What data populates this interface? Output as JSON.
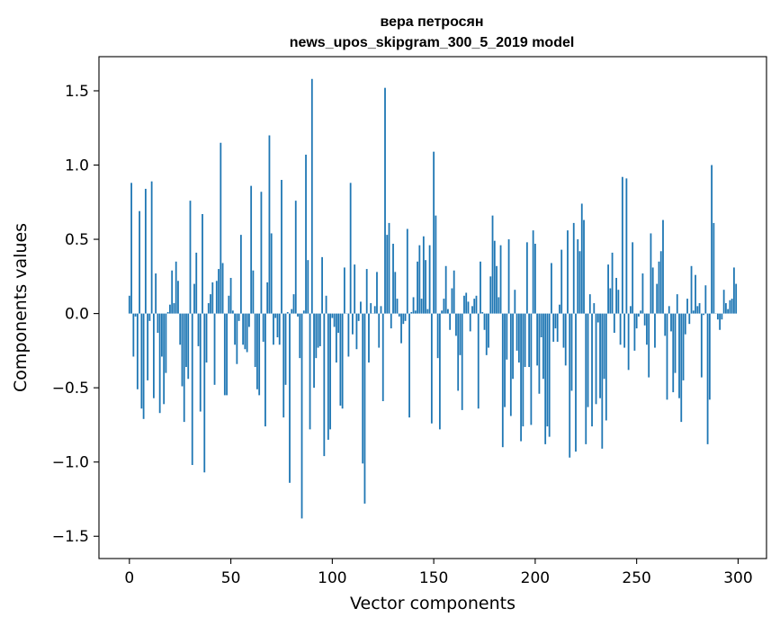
{
  "chart_data": {
    "type": "bar",
    "title_line1": "вера петросян",
    "title_line2": "news_upos_skipgram_300_5_2019 model",
    "xlabel": "Vector components",
    "ylabel": "Components values",
    "xlim": [
      -15,
      314
    ],
    "ylim": [
      -1.65,
      1.73
    ],
    "xticks": [
      0,
      50,
      100,
      150,
      200,
      250,
      300
    ],
    "xtick_labels": [
      "0",
      "50",
      "100",
      "150",
      "200",
      "250",
      "300"
    ],
    "yticks": [
      -1.5,
      -1.0,
      -0.5,
      0.0,
      0.5,
      1.0,
      1.5
    ],
    "ytick_labels": [
      "−1.5",
      "−1.0",
      "−0.5",
      "0.0",
      "0.5",
      "1.0",
      "1.5"
    ],
    "bar_color": "#1f77b4",
    "values": [
      0.12,
      0.88,
      -0.29,
      -0.02,
      -0.51,
      0.69,
      -0.64,
      -0.71,
      0.84,
      -0.45,
      -0.05,
      0.89,
      -0.57,
      0.27,
      -0.13,
      -0.67,
      -0.29,
      -0.61,
      -0.4,
      0.01,
      0.06,
      0.29,
      0.07,
      0.35,
      0.22,
      -0.21,
      -0.49,
      -0.73,
      -0.36,
      -0.44,
      0.76,
      -1.02,
      0.2,
      0.41,
      -0.22,
      -0.66,
      0.67,
      -1.07,
      -0.33,
      0.07,
      0.13,
      0.21,
      -0.48,
      0.22,
      0.3,
      1.15,
      0.34,
      -0.55,
      -0.55,
      0.12,
      0.24,
      0.02,
      -0.21,
      -0.34,
      -0.05,
      0.53,
      -0.21,
      -0.24,
      -0.26,
      -0.09,
      0.86,
      0.29,
      -0.36,
      -0.51,
      -0.55,
      0.82,
      -0.19,
      -0.76,
      0.21,
      1.2,
      0.54,
      -0.21,
      -0.03,
      -0.16,
      -0.21,
      0.9,
      -0.7,
      -0.48,
      0.01,
      -1.14,
      0.03,
      0.13,
      0.76,
      -0.02,
      -0.3,
      -1.38,
      0.02,
      1.07,
      0.36,
      -0.78,
      1.58,
      -0.5,
      -0.3,
      -0.23,
      -0.22,
      0.38,
      -0.96,
      0.12,
      -0.85,
      -0.78,
      -0.03,
      -0.09,
      -0.33,
      -0.13,
      -0.62,
      -0.64,
      0.31,
      0.0,
      -0.29,
      0.88,
      -0.14,
      0.33,
      -0.24,
      -0.05,
      0.08,
      -1.01,
      -1.28,
      0.3,
      -0.33,
      0.07,
      0.0,
      0.05,
      0.28,
      -0.23,
      0.05,
      -0.59,
      1.52,
      0.53,
      0.61,
      -0.1,
      0.47,
      0.28,
      0.1,
      -0.02,
      -0.2,
      -0.07,
      -0.05,
      0.57,
      -0.7,
      0.01,
      0.11,
      0.02,
      0.35,
      0.46,
      0.1,
      0.52,
      0.36,
      0.03,
      0.46,
      -0.74,
      1.09,
      0.66,
      -0.3,
      -0.78,
      0.02,
      0.1,
      0.32,
      0.03,
      -0.11,
      0.17,
      0.29,
      -0.15,
      -0.52,
      -0.28,
      -0.65,
      0.12,
      0.14,
      0.08,
      -0.12,
      0.05,
      0.1,
      0.12,
      -0.64,
      0.35,
      0.01,
      -0.11,
      -0.28,
      -0.23,
      0.25,
      0.66,
      0.49,
      0.32,
      0.11,
      0.46,
      -0.9,
      -0.63,
      -0.31,
      0.5,
      -0.69,
      -0.44,
      0.16,
      -0.25,
      -0.33,
      -0.86,
      -0.76,
      -0.36,
      0.48,
      -0.36,
      -0.75,
      0.56,
      0.47,
      -0.35,
      -0.54,
      -0.16,
      -0.44,
      -0.88,
      -0.76,
      -0.83,
      0.34,
      -0.19,
      -0.1,
      -0.19,
      0.06,
      0.43,
      -0.23,
      -0.35,
      0.56,
      -0.97,
      -0.52,
      0.61,
      -0.93,
      0.5,
      0.42,
      0.74,
      0.63,
      -0.88,
      -0.63,
      0.13,
      -0.76,
      0.07,
      -0.61,
      -0.06,
      -0.57,
      -0.91,
      -0.44,
      -0.72,
      0.33,
      0.17,
      0.41,
      -0.13,
      0.24,
      0.16,
      -0.21,
      0.92,
      -0.23,
      0.91,
      -0.38,
      0.05,
      0.48,
      -0.25,
      -0.1,
      -0.02,
      0.02,
      0.27,
      -0.08,
      -0.21,
      -0.43,
      0.54,
      0.31,
      -0.23,
      0.2,
      0.35,
      0.42,
      0.63,
      -0.15,
      -0.58,
      0.05,
      -0.12,
      -0.53,
      -0.4,
      0.13,
      -0.57,
      -0.73,
      -0.45,
      -0.14,
      0.1,
      -0.07,
      0.32,
      0.02,
      0.26,
      0.05,
      0.07,
      -0.43,
      -0.01,
      0.19,
      -0.88,
      -0.58,
      1.0,
      0.61,
      0.0,
      -0.04,
      -0.11,
      -0.04,
      0.16,
      0.07,
      0.03,
      0.09,
      0.1,
      0.31,
      0.2
    ]
  }
}
